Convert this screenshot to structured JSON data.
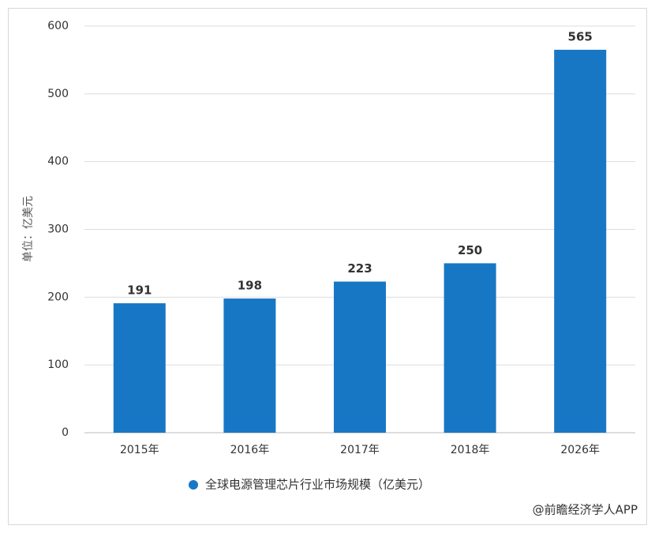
{
  "chart_data": {
    "type": "bar",
    "y_label": "单位：亿美元",
    "categories": [
      "2015年",
      "2016年",
      "2017年",
      "2018年",
      "2026年"
    ],
    "series": [
      {
        "name": "全球电源管理芯片行业市场规模（亿美元）",
        "color": "#1877c5",
        "values": [
          191,
          198,
          223,
          250,
          565
        ]
      }
    ],
    "ylim": [
      0,
      600
    ],
    "yticks": [
      0,
      100,
      200,
      300,
      400,
      500,
      600
    ],
    "grid": true,
    "legend": "bottom",
    "source": "@前瞻经济学人APP"
  }
}
